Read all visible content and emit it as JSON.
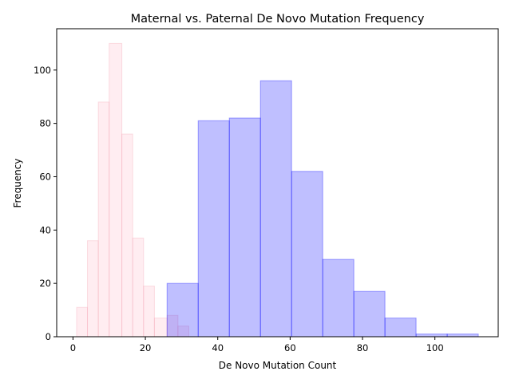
{
  "chart_data": {
    "type": "histogram",
    "title": "Maternal vs. Paternal De Novo Mutation Frequency",
    "xlabel": "De Novo Mutation Count",
    "ylabel": "Frequency",
    "xlim": [
      -4.5,
      117.5
    ],
    "ylim": [
      0,
      115.5
    ],
    "xticks": [
      0,
      20,
      40,
      60,
      80,
      100
    ],
    "yticks": [
      0,
      20,
      40,
      60,
      80,
      100
    ],
    "grid": false,
    "legend": false,
    "series": [
      {
        "fill": "#ffc0cb",
        "edge": "#f4a6b4",
        "bins": [
          {
            "x0": 1.0,
            "x1": 4.0,
            "count": 11
          },
          {
            "x0": 4.0,
            "x1": 7.0,
            "count": 36
          },
          {
            "x0": 7.0,
            "x1": 10.0,
            "count": 88
          },
          {
            "x0": 10.0,
            "x1": 13.5,
            "count": 110
          },
          {
            "x0": 13.5,
            "x1": 16.5,
            "count": 76
          },
          {
            "x0": 16.5,
            "x1": 19.5,
            "count": 37
          },
          {
            "x0": 19.5,
            "x1": 22.5,
            "count": 19
          },
          {
            "x0": 22.5,
            "x1": 26.0,
            "count": 7
          },
          {
            "x0": 26.0,
            "x1": 29.0,
            "count": 8
          },
          {
            "x0": 29.0,
            "x1": 32.0,
            "count": 4
          }
        ]
      },
      {
        "fill": "#0000ff",
        "edge": "#0000ff",
        "bins": [
          {
            "x0": 26.0,
            "x1": 34.6,
            "count": 20
          },
          {
            "x0": 34.6,
            "x1": 43.2,
            "count": 81
          },
          {
            "x0": 43.2,
            "x1": 51.8,
            "count": 82
          },
          {
            "x0": 51.8,
            "x1": 60.4,
            "count": 96
          },
          {
            "x0": 60.4,
            "x1": 69.0,
            "count": 62
          },
          {
            "x0": 69.0,
            "x1": 77.6,
            "count": 29
          },
          {
            "x0": 77.6,
            "x1": 86.2,
            "count": 17
          },
          {
            "x0": 86.2,
            "x1": 94.8,
            "count": 7
          },
          {
            "x0": 94.8,
            "x1": 103.4,
            "count": 1
          },
          {
            "x0": 103.4,
            "x1": 112.0,
            "count": 1
          }
        ]
      }
    ]
  }
}
